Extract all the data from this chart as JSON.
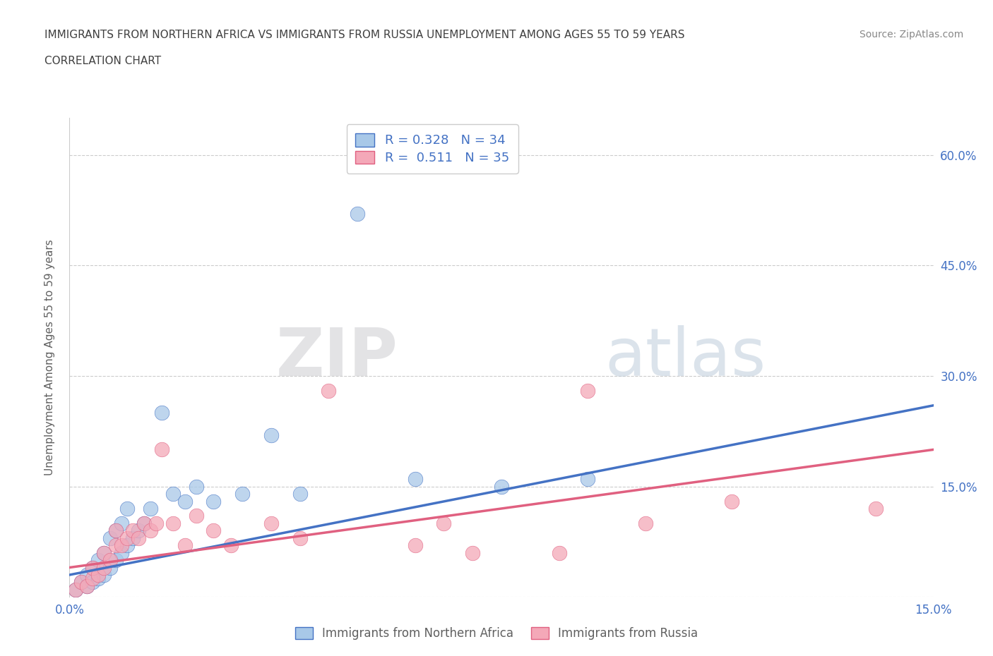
{
  "title_line1": "IMMIGRANTS FROM NORTHERN AFRICA VS IMMIGRANTS FROM RUSSIA UNEMPLOYMENT AMONG AGES 55 TO 59 YEARS",
  "title_line2": "CORRELATION CHART",
  "source_text": "Source: ZipAtlas.com",
  "ylabel": "Unemployment Among Ages 55 to 59 years",
  "xlim": [
    0.0,
    0.15
  ],
  "ylim": [
    0.0,
    0.65
  ],
  "xtick_vals": [
    0.0,
    0.025,
    0.05,
    0.075,
    0.1,
    0.125,
    0.15
  ],
  "xtick_labels": [
    "0.0%",
    "",
    "",
    "",
    "",
    "",
    "15.0%"
  ],
  "ytick_vals": [
    0.0,
    0.15,
    0.3,
    0.45,
    0.6
  ],
  "ytick_labels": [
    "",
    "15.0%",
    "30.0%",
    "45.0%",
    "60.0%"
  ],
  "legend_r1": "R = 0.328   N = 34",
  "legend_r2": "R =  0.511   N = 35",
  "color_africa": "#a8c8e8",
  "color_russia": "#f4a8b8",
  "line_color_africa": "#4472c4",
  "line_color_russia": "#e06080",
  "watermark_zip": "ZIP",
  "watermark_atlas": "atlas",
  "africa_scatter_x": [
    0.001,
    0.002,
    0.003,
    0.003,
    0.004,
    0.004,
    0.005,
    0.005,
    0.006,
    0.006,
    0.007,
    0.007,
    0.008,
    0.008,
    0.009,
    0.009,
    0.01,
    0.01,
    0.011,
    0.012,
    0.013,
    0.014,
    0.016,
    0.018,
    0.02,
    0.022,
    0.025,
    0.03,
    0.035,
    0.04,
    0.05,
    0.06,
    0.075,
    0.09
  ],
  "africa_scatter_y": [
    0.01,
    0.02,
    0.015,
    0.03,
    0.02,
    0.04,
    0.025,
    0.05,
    0.03,
    0.06,
    0.04,
    0.08,
    0.05,
    0.09,
    0.06,
    0.1,
    0.07,
    0.12,
    0.08,
    0.09,
    0.1,
    0.12,
    0.25,
    0.14,
    0.13,
    0.15,
    0.13,
    0.14,
    0.22,
    0.14,
    0.52,
    0.16,
    0.15,
    0.16
  ],
  "russia_scatter_x": [
    0.001,
    0.002,
    0.003,
    0.004,
    0.004,
    0.005,
    0.006,
    0.006,
    0.007,
    0.008,
    0.008,
    0.009,
    0.01,
    0.011,
    0.012,
    0.013,
    0.014,
    0.015,
    0.016,
    0.018,
    0.02,
    0.022,
    0.025,
    0.028,
    0.035,
    0.04,
    0.045,
    0.06,
    0.065,
    0.07,
    0.085,
    0.09,
    0.1,
    0.115,
    0.14
  ],
  "russia_scatter_y": [
    0.01,
    0.02,
    0.015,
    0.025,
    0.04,
    0.03,
    0.04,
    0.06,
    0.05,
    0.07,
    0.09,
    0.07,
    0.08,
    0.09,
    0.08,
    0.1,
    0.09,
    0.1,
    0.2,
    0.1,
    0.07,
    0.11,
    0.09,
    0.07,
    0.1,
    0.08,
    0.28,
    0.07,
    0.1,
    0.06,
    0.06,
    0.28,
    0.1,
    0.13,
    0.12
  ],
  "africa_trend_x": [
    0.0,
    0.15
  ],
  "africa_trend_y": [
    0.03,
    0.26
  ],
  "russia_trend_x": [
    0.0,
    0.15
  ],
  "russia_trend_y": [
    0.04,
    0.2
  ],
  "background_color": "#ffffff",
  "grid_color": "#cccccc",
  "title_color": "#404040",
  "axis_label_color": "#606060",
  "tick_label_color": "#4472c4"
}
